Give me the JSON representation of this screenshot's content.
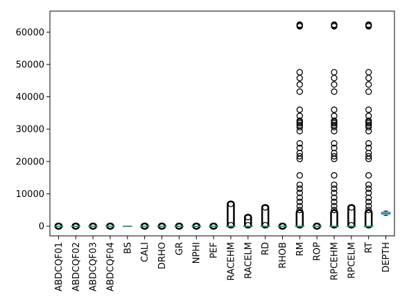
{
  "chart_data": {
    "type": "box",
    "title": "",
    "xlabel": "",
    "ylabel": "",
    "ylim": [
      -3000,
      66500
    ],
    "yticks": [
      0,
      10000,
      20000,
      30000,
      40000,
      50000,
      60000
    ],
    "ytick_labels": [
      "0",
      "10000",
      "20000",
      "30000",
      "40000",
      "50000",
      "60000"
    ],
    "grid": false,
    "colors": {
      "box": "#1f77b4",
      "median": "#2ca02c",
      "whisker": "#000000",
      "outlier": "#000000"
    },
    "categories": [
      "ABDCQF01",
      "ABDCQF02",
      "ABDCQF03",
      "ABDCQF04",
      "BS",
      "CALI",
      "DRHO",
      "GR",
      "NPHI",
      "PEF",
      "RACEHM",
      "RACELM",
      "RD",
      "RHOB",
      "RM",
      "ROP",
      "RPCEHM",
      "RPCELM",
      "RT",
      "DEPTH"
    ],
    "boxes": [
      {
        "q1": 0,
        "median": 0,
        "q3": 0,
        "whislo": 0,
        "whishi": 0,
        "fliers": [
          -80,
          80
        ],
        "dense": [
          -90,
          90
        ]
      },
      {
        "q1": 0,
        "median": 0,
        "q3": 0,
        "whislo": 0,
        "whishi": 0,
        "fliers": [
          -80,
          80
        ],
        "dense": [
          -90,
          90
        ]
      },
      {
        "q1": 0,
        "median": 0,
        "q3": 0,
        "whislo": 0,
        "whishi": 0,
        "fliers": [
          -80,
          80
        ],
        "dense": [
          -90,
          90
        ]
      },
      {
        "q1": 0,
        "median": 0,
        "q3": 0,
        "whislo": 0,
        "whishi": 0,
        "fliers": [
          -80,
          80
        ],
        "dense": [
          -90,
          90
        ]
      },
      {
        "q1": 0,
        "median": 0,
        "q3": 0,
        "whislo": 0,
        "whishi": 0,
        "fliers": [],
        "dense": null
      },
      {
        "q1": 0,
        "median": 0,
        "q3": 0,
        "whislo": 0,
        "whishi": 0,
        "fliers": [
          -80,
          80
        ],
        "dense": [
          -90,
          90
        ]
      },
      {
        "q1": 0,
        "median": 0,
        "q3": 0,
        "whislo": 0,
        "whishi": 0,
        "fliers": [
          -80,
          80
        ],
        "dense": [
          -90,
          90
        ]
      },
      {
        "q1": 0,
        "median": 0,
        "q3": 0,
        "whislo": 0,
        "whishi": 0,
        "fliers": [
          -80,
          80
        ],
        "dense": [
          -90,
          90
        ]
      },
      {
        "q1": 0,
        "median": 0,
        "q3": 0,
        "whislo": 0,
        "whishi": 0,
        "fliers": [
          -80,
          80
        ],
        "dense": [
          -90,
          90
        ]
      },
      {
        "q1": 0,
        "median": 0,
        "q3": 0,
        "whislo": 0,
        "whishi": 0,
        "fliers": [
          -80,
          80
        ],
        "dense": [
          -90,
          90
        ]
      },
      {
        "q1": 0,
        "median": 0,
        "q3": 0,
        "whislo": 0,
        "whishi": 0,
        "fliers": [
          300,
          6900
        ],
        "dense": [
          300,
          6900
        ]
      },
      {
        "q1": 0,
        "median": 0,
        "q3": 0,
        "whislo": 0,
        "whishi": 0,
        "fliers": [
          300,
          2800
        ],
        "dense": [
          300,
          2800
        ]
      },
      {
        "q1": 0,
        "median": 0,
        "q3": 0,
        "whislo": 0,
        "whishi": 0,
        "fliers": [
          300,
          5800
        ],
        "dense": [
          300,
          5800
        ]
      },
      {
        "q1": 0,
        "median": 0,
        "q3": 0,
        "whislo": 0,
        "whishi": 0,
        "fliers": [
          -80,
          80
        ],
        "dense": [
          -90,
          90
        ]
      },
      {
        "q1": 0,
        "median": 0,
        "q3": 0,
        "whislo": 0,
        "whishi": 0,
        "fliers": [
          5000,
          6200,
          7500,
          8800,
          10300,
          11600,
          12800,
          15700,
          20800,
          21600,
          22600,
          24200,
          25600,
          29400,
          30600,
          31200,
          31800,
          32200,
          32600,
          34100,
          36000,
          41600,
          43800,
          45800,
          47600,
          61800,
          62100,
          62300
        ],
        "dense": [
          300,
          4200
        ]
      },
      {
        "q1": 0,
        "median": 0,
        "q3": 0,
        "whislo": 0,
        "whishi": 0,
        "fliers": [
          -80,
          80
        ],
        "dense": [
          -90,
          90
        ]
      },
      {
        "q1": 0,
        "median": 0,
        "q3": 0,
        "whislo": 0,
        "whishi": 0,
        "fliers": [
          5000,
          6200,
          7500,
          8800,
          10300,
          11600,
          12800,
          15700,
          20800,
          21600,
          22600,
          24200,
          25600,
          29400,
          30600,
          31200,
          31800,
          32200,
          32600,
          34100,
          36000,
          41600,
          43800,
          45800,
          47600,
          61800,
          62100,
          62300
        ],
        "dense": [
          300,
          4200
        ]
      },
      {
        "q1": 0,
        "median": 0,
        "q3": 0,
        "whislo": 0,
        "whishi": 0,
        "fliers": [
          300,
          5800
        ],
        "dense": [
          300,
          5800
        ]
      },
      {
        "q1": 0,
        "median": 0,
        "q3": 0,
        "whislo": 0,
        "whishi": 0,
        "fliers": [
          5000,
          6200,
          7500,
          8800,
          10300,
          11600,
          12800,
          15700,
          20800,
          21600,
          22600,
          24200,
          25600,
          29400,
          30600,
          31200,
          31800,
          32200,
          32600,
          34100,
          36000,
          41600,
          43800,
          45800,
          47600,
          61800,
          62100,
          62300
        ],
        "dense": [
          300,
          4200
        ]
      },
      {
        "q1": 3700,
        "median": 4000,
        "q3": 4300,
        "whislo": 3300,
        "whishi": 4700,
        "fliers": [],
        "dense": null
      }
    ]
  }
}
